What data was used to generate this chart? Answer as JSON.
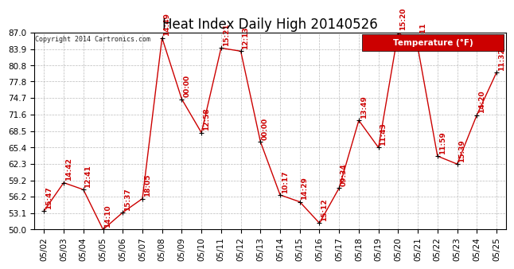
{
  "title": "Heat Index Daily High 20140526",
  "copyright": "Copyright 2014 Cartronics.com",
  "legend_label": "Temperature (°F)",
  "dates": [
    "05/02",
    "05/03",
    "05/04",
    "05/05",
    "05/06",
    "05/07",
    "05/08",
    "05/09",
    "05/10",
    "05/11",
    "05/12",
    "05/13",
    "05/14",
    "05/15",
    "05/16",
    "05/17",
    "05/18",
    "05/19",
    "05/20",
    "05/21",
    "05/22",
    "05/23",
    "05/24",
    "05/25"
  ],
  "values": [
    53.5,
    58.8,
    57.5,
    50.0,
    53.2,
    55.8,
    86.0,
    74.5,
    68.2,
    84.1,
    83.5,
    66.5,
    56.5,
    55.2,
    51.2,
    57.8,
    70.5,
    65.4,
    87.0,
    84.2,
    63.8,
    62.3,
    71.5,
    79.5
  ],
  "time_labels": [
    "15:47",
    "14:42",
    "12:41",
    "14:10",
    "15:37",
    "18:05",
    "14:49",
    "00:00",
    "12:58",
    "15:21",
    "12:13",
    "00:00",
    "10:17",
    "14:29",
    "15:12",
    "09:34",
    "13:49",
    "11:43",
    "15:20",
    "11:11",
    "11:59",
    "15:39",
    "14:20",
    "11:32"
  ],
  "ylim_min": 50.0,
  "ylim_max": 87.0,
  "yticks": [
    50.0,
    53.1,
    56.2,
    59.2,
    62.3,
    65.4,
    68.5,
    71.6,
    74.7,
    77.8,
    80.8,
    83.9,
    87.0
  ],
  "line_color": "#cc0000",
  "marker_color": "#000000",
  "label_color": "#cc0000",
  "bg_color": "#ffffff",
  "grid_color": "#aaaaaa",
  "title_fontsize": 12,
  "label_fontsize": 6.5,
  "tick_fontsize": 7.5,
  "legend_bg": "#cc0000",
  "legend_text_color": "#ffffff",
  "legend_fontsize": 7.5
}
